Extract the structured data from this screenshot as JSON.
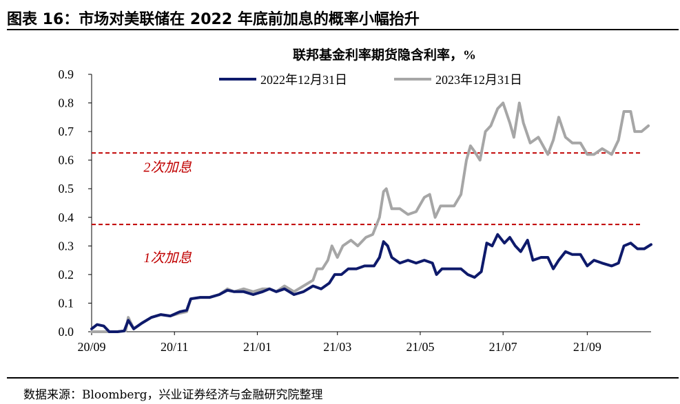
{
  "figure": {
    "title": "图表 16：市场对美联储在 2022 年底前加息的概率小幅抬升",
    "source": "数据来源：Bloomberg，兴业证券经济与金融研究院整理"
  },
  "chart_data": {
    "type": "line",
    "title": "联邦基金利率期货隐含利率，%",
    "xlabel": "",
    "ylabel": "",
    "ylim": [
      0,
      0.9
    ],
    "y_ticks": [
      "0.0",
      "0.1",
      "0.2",
      "0.3",
      "0.4",
      "0.5",
      "0.6",
      "0.7",
      "0.8",
      "0.9"
    ],
    "x_ticks": [
      "20/09",
      "20/11",
      "21/01",
      "21/03",
      "21/05",
      "21/07",
      "21/09"
    ],
    "x_range": [
      "2020-09-01",
      "2021-10-18"
    ],
    "grid": false,
    "legend_position": "top-center",
    "reference_lines": [
      {
        "y": 0.375,
        "label": "1次加息",
        "color": "#c00000"
      },
      {
        "y": 0.625,
        "label": "2次加息",
        "color": "#c00000"
      }
    ],
    "series": [
      {
        "name": "2022年12月31日",
        "color": "#0e1a6b",
        "points": [
          [
            "2020-09-01",
            0.01
          ],
          [
            "2020-09-05",
            0.025
          ],
          [
            "2020-09-10",
            0.02
          ],
          [
            "2020-09-14",
            0.0
          ],
          [
            "2020-09-20",
            0.0
          ],
          [
            "2020-09-25",
            0.003
          ],
          [
            "2020-09-28",
            0.04
          ],
          [
            "2020-10-02",
            0.01
          ],
          [
            "2020-10-08",
            0.03
          ],
          [
            "2020-10-15",
            0.05
          ],
          [
            "2020-10-22",
            0.06
          ],
          [
            "2020-10-29",
            0.055
          ],
          [
            "2020-11-05",
            0.07
          ],
          [
            "2020-11-10",
            0.075
          ],
          [
            "2020-11-13",
            0.115
          ],
          [
            "2020-11-20",
            0.12
          ],
          [
            "2020-11-27",
            0.12
          ],
          [
            "2020-12-04",
            0.13
          ],
          [
            "2020-12-10",
            0.145
          ],
          [
            "2020-12-15",
            0.14
          ],
          [
            "2020-12-22",
            0.14
          ],
          [
            "2020-12-29",
            0.13
          ],
          [
            "2021-01-05",
            0.14
          ],
          [
            "2021-01-10",
            0.15
          ],
          [
            "2021-01-15",
            0.14
          ],
          [
            "2021-01-21",
            0.15
          ],
          [
            "2021-01-28",
            0.13
          ],
          [
            "2021-02-04",
            0.14
          ],
          [
            "2021-02-11",
            0.16
          ],
          [
            "2021-02-17",
            0.15
          ],
          [
            "2021-02-23",
            0.17
          ],
          [
            "2021-02-27",
            0.2
          ],
          [
            "2021-03-04",
            0.2
          ],
          [
            "2021-03-09",
            0.22
          ],
          [
            "2021-03-15",
            0.22
          ],
          [
            "2021-03-21",
            0.23
          ],
          [
            "2021-03-28",
            0.23
          ],
          [
            "2021-04-01",
            0.26
          ],
          [
            "2021-04-04",
            0.315
          ],
          [
            "2021-04-07",
            0.3
          ],
          [
            "2021-04-10",
            0.26
          ],
          [
            "2021-04-16",
            0.24
          ],
          [
            "2021-04-22",
            0.25
          ],
          [
            "2021-04-28",
            0.24
          ],
          [
            "2021-05-04",
            0.25
          ],
          [
            "2021-05-10",
            0.24
          ],
          [
            "2021-05-13",
            0.2
          ],
          [
            "2021-05-17",
            0.22
          ],
          [
            "2021-05-24",
            0.22
          ],
          [
            "2021-05-31",
            0.22
          ],
          [
            "2021-06-05",
            0.2
          ],
          [
            "2021-06-10",
            0.19
          ],
          [
            "2021-06-15",
            0.21
          ],
          [
            "2021-06-19",
            0.31
          ],
          [
            "2021-06-23",
            0.3
          ],
          [
            "2021-06-27",
            0.34
          ],
          [
            "2021-07-02",
            0.31
          ],
          [
            "2021-07-06",
            0.33
          ],
          [
            "2021-07-10",
            0.3
          ],
          [
            "2021-07-14",
            0.28
          ],
          [
            "2021-07-19",
            0.32
          ],
          [
            "2021-07-23",
            0.25
          ],
          [
            "2021-07-29",
            0.26
          ],
          [
            "2021-08-03",
            0.26
          ],
          [
            "2021-08-07",
            0.22
          ],
          [
            "2021-08-11",
            0.25
          ],
          [
            "2021-08-16",
            0.28
          ],
          [
            "2021-08-21",
            0.27
          ],
          [
            "2021-08-27",
            0.27
          ],
          [
            "2021-09-01",
            0.23
          ],
          [
            "2021-09-06",
            0.25
          ],
          [
            "2021-09-12",
            0.24
          ],
          [
            "2021-09-19",
            0.23
          ],
          [
            "2021-09-24",
            0.24
          ],
          [
            "2021-09-28",
            0.3
          ],
          [
            "2021-10-03",
            0.31
          ],
          [
            "2021-10-08",
            0.29
          ],
          [
            "2021-10-13",
            0.29
          ],
          [
            "2021-10-18",
            0.305
          ]
        ]
      },
      {
        "name": "2023年12月31日",
        "color": "#a6a6a6",
        "points": [
          [
            "2020-09-01",
            0.0
          ],
          [
            "2020-09-10",
            0.0
          ],
          [
            "2020-09-20",
            0.0
          ],
          [
            "2020-09-26",
            0.003
          ],
          [
            "2020-09-28",
            0.05
          ],
          [
            "2020-10-02",
            0.01
          ],
          [
            "2020-10-08",
            0.03
          ],
          [
            "2020-10-15",
            0.05
          ],
          [
            "2020-10-22",
            0.06
          ],
          [
            "2020-10-29",
            0.055
          ],
          [
            "2020-11-05",
            0.065
          ],
          [
            "2020-11-10",
            0.07
          ],
          [
            "2020-11-13",
            0.115
          ],
          [
            "2020-11-20",
            0.12
          ],
          [
            "2020-11-27",
            0.12
          ],
          [
            "2020-12-04",
            0.13
          ],
          [
            "2020-12-10",
            0.15
          ],
          [
            "2020-12-15",
            0.14
          ],
          [
            "2020-12-22",
            0.15
          ],
          [
            "2020-12-29",
            0.14
          ],
          [
            "2021-01-05",
            0.15
          ],
          [
            "2021-01-10",
            0.15
          ],
          [
            "2021-01-15",
            0.14
          ],
          [
            "2021-01-21",
            0.16
          ],
          [
            "2021-01-28",
            0.14
          ],
          [
            "2021-02-04",
            0.16
          ],
          [
            "2021-02-11",
            0.18
          ],
          [
            "2021-02-14",
            0.22
          ],
          [
            "2021-02-18",
            0.22
          ],
          [
            "2021-02-22",
            0.25
          ],
          [
            "2021-02-25",
            0.3
          ],
          [
            "2021-03-01",
            0.26
          ],
          [
            "2021-03-05",
            0.3
          ],
          [
            "2021-03-11",
            0.32
          ],
          [
            "2021-03-16",
            0.3
          ],
          [
            "2021-03-22",
            0.33
          ],
          [
            "2021-03-27",
            0.34
          ],
          [
            "2021-04-01",
            0.4
          ],
          [
            "2021-04-04",
            0.49
          ],
          [
            "2021-04-06",
            0.5
          ],
          [
            "2021-04-10",
            0.43
          ],
          [
            "2021-04-16",
            0.43
          ],
          [
            "2021-04-22",
            0.41
          ],
          [
            "2021-04-28",
            0.42
          ],
          [
            "2021-05-04",
            0.47
          ],
          [
            "2021-05-08",
            0.48
          ],
          [
            "2021-05-12",
            0.4
          ],
          [
            "2021-05-16",
            0.44
          ],
          [
            "2021-05-21",
            0.44
          ],
          [
            "2021-05-26",
            0.44
          ],
          [
            "2021-05-31",
            0.48
          ],
          [
            "2021-06-04",
            0.6
          ],
          [
            "2021-06-07",
            0.65
          ],
          [
            "2021-06-10",
            0.63
          ],
          [
            "2021-06-14",
            0.6
          ],
          [
            "2021-06-18",
            0.7
          ],
          [
            "2021-06-22",
            0.72
          ],
          [
            "2021-06-27",
            0.78
          ],
          [
            "2021-07-01",
            0.8
          ],
          [
            "2021-07-06",
            0.73
          ],
          [
            "2021-07-09",
            0.68
          ],
          [
            "2021-07-13",
            0.8
          ],
          [
            "2021-07-16",
            0.73
          ],
          [
            "2021-07-21",
            0.66
          ],
          [
            "2021-07-27",
            0.68
          ],
          [
            "2021-08-03",
            0.62
          ],
          [
            "2021-08-07",
            0.67
          ],
          [
            "2021-08-11",
            0.75
          ],
          [
            "2021-08-16",
            0.68
          ],
          [
            "2021-08-21",
            0.66
          ],
          [
            "2021-08-27",
            0.66
          ],
          [
            "2021-09-01",
            0.62
          ],
          [
            "2021-09-06",
            0.62
          ],
          [
            "2021-09-12",
            0.64
          ],
          [
            "2021-09-19",
            0.62
          ],
          [
            "2021-09-24",
            0.67
          ],
          [
            "2021-09-28",
            0.77
          ],
          [
            "2021-10-03",
            0.77
          ],
          [
            "2021-10-06",
            0.7
          ],
          [
            "2021-10-11",
            0.7
          ],
          [
            "2021-10-16",
            0.72
          ]
        ]
      }
    ]
  }
}
